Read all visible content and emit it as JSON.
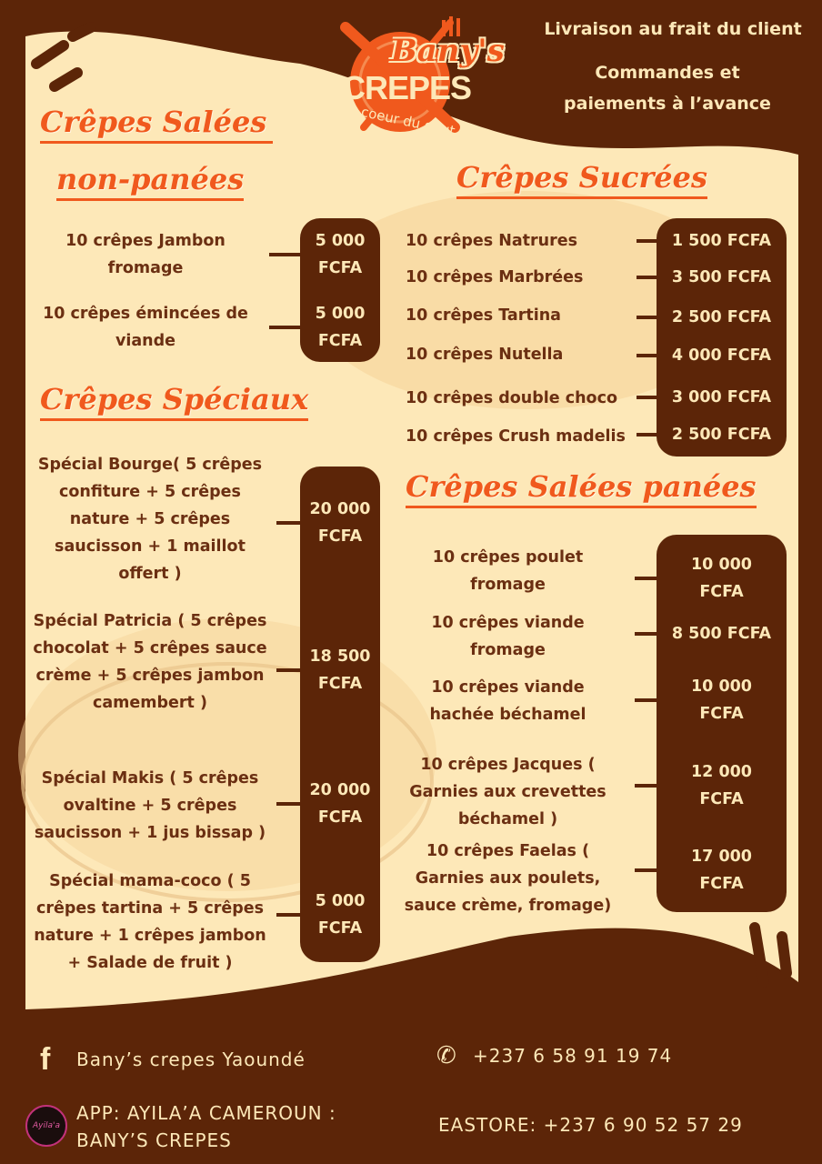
{
  "brand": {
    "name_top": "Bany's",
    "name_bottom": "CREPES",
    "tagline": "Au coeur du gout"
  },
  "top_info": {
    "line1": "Livraison au frait du client",
    "line2": "Commandes et",
    "line3": "paiements à l’avance"
  },
  "colors": {
    "brown": "#5c2508",
    "cream": "#fde8b8",
    "orange": "#f0591d",
    "text": "#6b2f12"
  },
  "sections": {
    "salees_non_panees": {
      "title1": "Crêpes Salées",
      "title2": "non-panées",
      "items": [
        {
          "name": "10 crêpes Jambon fromage",
          "price": "5 000 FCFA"
        },
        {
          "name": "10 crêpes émincées de viande",
          "price": "5 000 FCFA"
        }
      ]
    },
    "speciaux": {
      "title": "Crêpes Spéciaux",
      "items": [
        {
          "name": "Spécial Bourge( 5 crêpes confiture + 5 crêpes nature + 5 crêpes saucisson + 1 maillot offert )",
          "price": "20 000 FCFA"
        },
        {
          "name": "Spécial Patricia ( 5 crêpes chocolat + 5 crêpes sauce crème + 5 crêpes jambon camembert )",
          "price": "18 500 FCFA"
        },
        {
          "name": "Spécial Makis ( 5 crêpes ovaltine + 5 crêpes saucisson + 1 jus bissap )",
          "price": "20 000 FCFA"
        },
        {
          "name": "Spécial mama-coco ( 5 crêpes tartina + 5 crêpes nature + 1 crêpes jambon + Salade de fruit )",
          "price": "5 000 FCFA"
        }
      ]
    },
    "sucrees": {
      "title": "Crêpes Sucrées",
      "items": [
        {
          "name": "10 crêpes Natrures",
          "price": "1 500 FCFA"
        },
        {
          "name": "10 crêpes Marbrées",
          "price": "3 500 FCFA"
        },
        {
          "name": "10 crêpes Tartina",
          "price": "2 500 FCFA"
        },
        {
          "name": "10 crêpes Nutella",
          "price": "4 000 FCFA"
        },
        {
          "name": "10 crêpes double choco",
          "price": "3 000 FCFA"
        },
        {
          "name": "10 crêpes Crush madelis",
          "price": "2 500 FCFA"
        }
      ]
    },
    "salees_panees": {
      "title": "Crêpes Salées panées",
      "items": [
        {
          "name": "10 crêpes poulet fromage",
          "price": "10 000 FCFA"
        },
        {
          "name": "10 crêpes viande fromage",
          "price": "8 500 FCFA"
        },
        {
          "name": "10 crêpes viande hachée béchamel",
          "price": "10 000 FCFA"
        },
        {
          "name": "10 crêpes Jacques ( Garnies aux crevettes béchamel )",
          "price": "12 000 FCFA"
        },
        {
          "name": "10 crêpes Faelas ( Garnies aux poulets, sauce crème, fromage)",
          "price": "17 000 FCFA"
        }
      ]
    }
  },
  "footer": {
    "facebook": "Bany’s crepes Yaoundé",
    "phone": "+237 6 58 91 19 74",
    "app": "APP: AYILA’A CAMEROUN : BANY’S CREPES",
    "eastore": "EASTORE: +237 6 90 52 57 29",
    "app_logo_text": "Ayila'a"
  }
}
